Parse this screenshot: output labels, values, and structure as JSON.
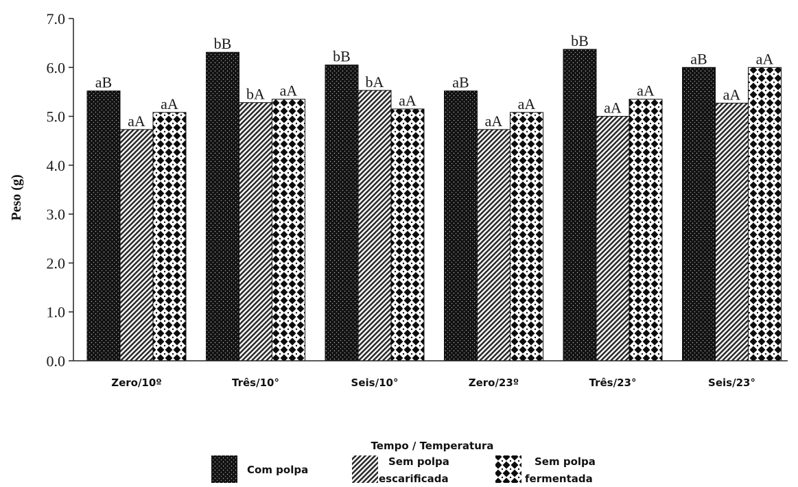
{
  "chart_data": {
    "type": "bar",
    "xlabel": "Tempo / Temperatura",
    "ylabel": "Peso (g)",
    "ylim": [
      0,
      7
    ],
    "yticks": [
      "0.0",
      "1.0",
      "2.0",
      "3.0",
      "4.0",
      "5.0",
      "6.0",
      "7.0"
    ],
    "categories": [
      "Zero/10º",
      "Três/10°",
      "Seis/10°",
      "Zero/23º",
      "Três/23°",
      "Seis/23°"
    ],
    "series": [
      {
        "name": "Com polpa",
        "values": [
          5.52,
          6.31,
          6.05,
          5.52,
          6.37,
          6.0
        ],
        "labels": [
          "aB",
          "bB",
          "bB",
          "aB",
          "bB",
          "aB"
        ],
        "pattern": "dots-dark"
      },
      {
        "name": "Sem polpa escarificada",
        "values": [
          4.73,
          5.28,
          5.53,
          4.73,
          5.0,
          5.27
        ],
        "labels": [
          "aA",
          "bA",
          "bA",
          "aA",
          "aA",
          "aA"
        ],
        "pattern": "diagonal-hatch"
      },
      {
        "name": "Sem polpa fermentada",
        "values": [
          5.08,
          5.35,
          5.15,
          5.08,
          5.35,
          6.0
        ],
        "labels": [
          "aA",
          "aA",
          "aA",
          "aA",
          "aA",
          "aA"
        ],
        "pattern": "diamond-check"
      }
    ],
    "legend": {
      "placement": "bottom",
      "items": [
        {
          "line1": "Com polpa",
          "line2": ""
        },
        {
          "line1": "Sem polpa",
          "line2": "escarificada"
        },
        {
          "line1": "Sem polpa",
          "line2": "fermentada"
        }
      ]
    },
    "grid": false
  }
}
